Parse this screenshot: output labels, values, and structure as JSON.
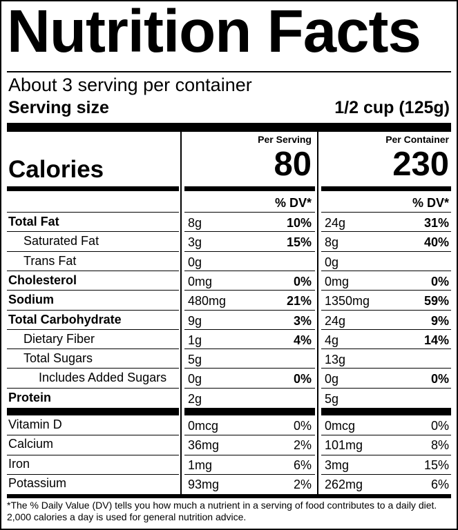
{
  "title": "Nutrition Facts",
  "servings": "About 3 serving per container",
  "serving_size": {
    "label": "Serving size",
    "value": "1/2 cup (125g)"
  },
  "calories": {
    "label": "Calories",
    "per_serving_header": "Per Serving",
    "per_serving": "80",
    "per_container_header": "Per Container",
    "per_container": "230"
  },
  "dv_header": "% DV*",
  "nutrients": [
    {
      "name": "Total Fat",
      "bold": true,
      "indent": 0,
      "serving_amount": "8g",
      "serving_dv": "10%",
      "container_amount": "24g",
      "container_dv": "31%"
    },
    {
      "name": "Saturated Fat",
      "bold": false,
      "indent": 1,
      "serving_amount": "3g",
      "serving_dv": "15%",
      "container_amount": "8g",
      "container_dv": "40%"
    },
    {
      "name": "Trans Fat",
      "bold": false,
      "indent": 1,
      "serving_amount": "0g",
      "container_amount": "0g"
    },
    {
      "name": "Cholesterol",
      "bold": true,
      "indent": 0,
      "serving_amount": "0mg",
      "serving_dv": "0%",
      "container_amount": "0mg",
      "container_dv": "0%"
    },
    {
      "name": "Sodium",
      "bold": true,
      "indent": 0,
      "serving_amount": "480mg",
      "serving_dv": "21%",
      "container_amount": "1350mg",
      "container_dv": "59%"
    },
    {
      "name": "Total Carbohydrate",
      "bold": true,
      "indent": 0,
      "serving_amount": "9g",
      "serving_dv": "3%",
      "container_amount": "24g",
      "container_dv": "9%"
    },
    {
      "name": "Dietary Fiber",
      "bold": false,
      "indent": 1,
      "serving_amount": "1g",
      "serving_dv": "4%",
      "container_amount": "4g",
      "container_dv": "14%"
    },
    {
      "name": "Total Sugars",
      "bold": false,
      "indent": 1,
      "serving_amount": "5g",
      "container_amount": "13g"
    },
    {
      "name": "Includes Added Sugars",
      "bold": false,
      "indent": 2,
      "serving_amount": "0g",
      "serving_dv": "0%",
      "container_amount": "0g",
      "container_dv": "0%"
    },
    {
      "name": "Protein",
      "bold": true,
      "indent": 0,
      "serving_amount": "2g",
      "container_amount": "5g"
    }
  ],
  "vitamins": [
    {
      "name": "Vitamin D",
      "serving_amount": "0mcg",
      "serving_dv": "0%",
      "container_amount": "0mcg",
      "container_dv": "0%"
    },
    {
      "name": "Calcium",
      "serving_amount": "36mg",
      "serving_dv": "2%",
      "container_amount": "101mg",
      "container_dv": "8%"
    },
    {
      "name": "Iron",
      "serving_amount": "1mg",
      "serving_dv": "6%",
      "container_amount": "3mg",
      "container_dv": "15%"
    },
    {
      "name": "Potassium",
      "serving_amount": "93mg",
      "serving_dv": "2%",
      "container_amount": "262mg",
      "container_dv": "6%"
    }
  ],
  "footnote": "*The % Daily Value (DV) tells you how much a nutrient in a serving of food contributes to a daily diet. 2,000 calories a day is used for general nutrition advice."
}
